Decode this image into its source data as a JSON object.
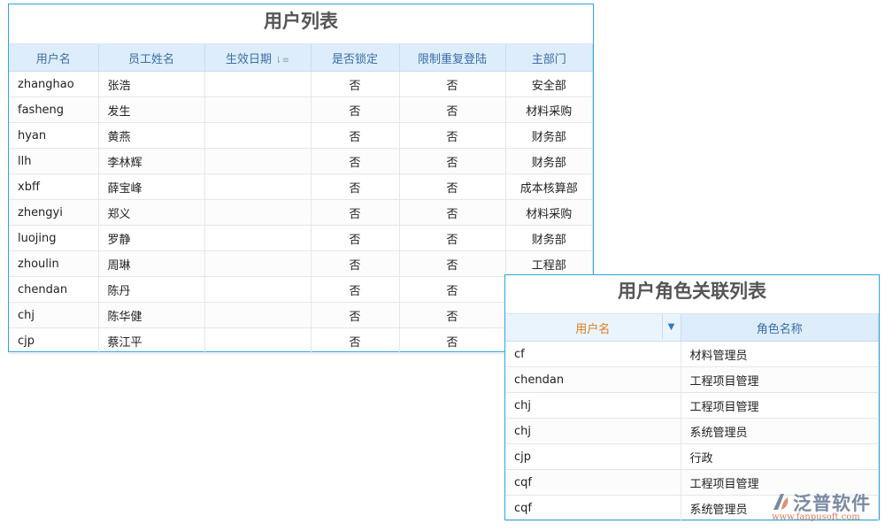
{
  "user_list": {
    "title": "用户列表",
    "columns": [
      "用户名",
      "员工姓名",
      "生效日期",
      "是否锁定",
      "限制重复登陆",
      "主部门"
    ],
    "rows": [
      [
        "zhanghao",
        "张浩",
        "",
        "否",
        "否",
        "安全部"
      ],
      [
        "fasheng",
        "发生",
        "",
        "否",
        "否",
        "材料采购"
      ],
      [
        "hyan",
        "黄燕",
        "",
        "否",
        "否",
        "财务部"
      ],
      [
        "llh",
        "李林辉",
        "",
        "否",
        "否",
        "财务部"
      ],
      [
        "xbff",
        "薛宝峰",
        "",
        "否",
        "否",
        "成本核算部"
      ],
      [
        "zhengyi",
        "郑义",
        "",
        "否",
        "否",
        "材料采购"
      ],
      [
        "luojing",
        "罗静",
        "",
        "否",
        "否",
        "财务部"
      ],
      [
        "zhoulin",
        "周琳",
        "",
        "否",
        "否",
        "工程部"
      ],
      [
        "chendan",
        "陈丹",
        "",
        "否",
        "否",
        ""
      ],
      [
        "chj",
        "陈华健",
        "",
        "否",
        "否",
        ""
      ],
      [
        "cjp",
        "蔡江平",
        "",
        "否",
        "否",
        ""
      ]
    ]
  },
  "role_list": {
    "title": "用户角色关联列表",
    "columns": [
      "用户名",
      "角色名称"
    ],
    "rows": [
      [
        "cf",
        "材料管理员"
      ],
      [
        "chendan",
        "工程项目管理"
      ],
      [
        "chj",
        "工程项目管理"
      ],
      [
        "chj",
        "系统管理员"
      ],
      [
        "cjp",
        "行政"
      ],
      [
        "cqf",
        "工程项目管理"
      ],
      [
        "cqf",
        "系统管理员"
      ]
    ]
  },
  "logo": {
    "name": "泛普软件",
    "url": "www.fanpusoft.com"
  },
  "colors": {
    "border": "#2aa7e0",
    "header_bg": "#deedfb",
    "header_text": "#3a6ea5",
    "sorted_header": "#e07b1a"
  }
}
